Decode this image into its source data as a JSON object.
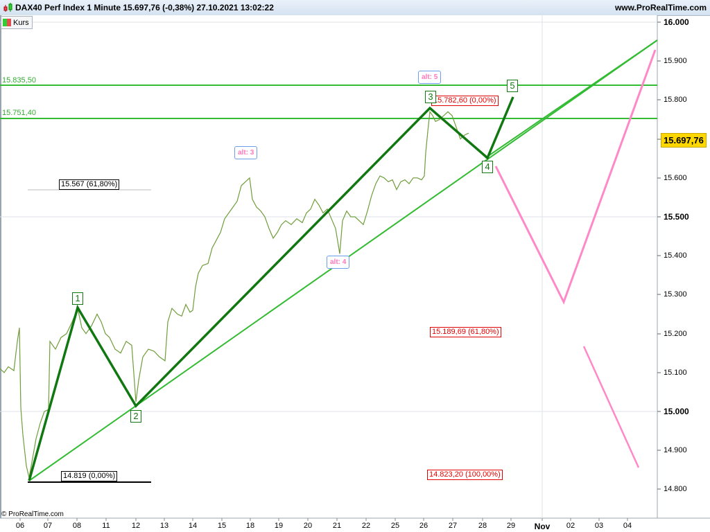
{
  "header": {
    "title": "DAX40 Perf Index 1 Minute 15.697,76 (-0,38%) 27.10.2021 13:02:22",
    "site": "www.ProRealTime.com"
  },
  "legend": {
    "label": "Kurs"
  },
  "footer": {
    "copyright": "© ProRealTime.com"
  },
  "colors": {
    "wave_line": "#117711",
    "trend_line": "#33bb33",
    "alt_path": "#ff88c8",
    "fib_red": "#e00000",
    "last_price_bg": "#ffd700",
    "candle_up": "#33cc33",
    "candle_down": "#e05050"
  },
  "chart_data": {
    "type": "line",
    "title": "DAX40 Perf Index 1 Minute",
    "last_price": "15.697,76",
    "change": "-0,38%",
    "timestamp": "27.10.2021 13:02:22",
    "xlabel": "",
    "ylabel": "",
    "ylim": [
      14750,
      16030
    ],
    "grid": true,
    "y_ticks": [
      "16.000",
      "15.900",
      "15.800",
      "15.700",
      "15.600",
      "15.500",
      "15.400",
      "15.300",
      "15.200",
      "15.100",
      "15.000",
      "14.900",
      "14.800"
    ],
    "x_ticks": [
      "06",
      "07",
      "08",
      "11",
      "12",
      "13",
      "14",
      "15",
      "18",
      "19",
      "20",
      "21",
      "22",
      "25",
      "26",
      "27",
      "28",
      "29",
      "Nov",
      "02",
      "03",
      "04"
    ],
    "price_path_approx": [
      [
        0,
        15110
      ],
      [
        6,
        15100
      ],
      [
        12,
        15115
      ],
      [
        20,
        15105
      ],
      [
        25,
        15180
      ],
      [
        28,
        15215
      ],
      [
        30,
        15010
      ],
      [
        33,
        14940
      ],
      [
        38,
        14860
      ],
      [
        42,
        14830
      ],
      [
        46,
        14870
      ],
      [
        52,
        14930
      ],
      [
        58,
        14970
      ],
      [
        64,
        15000
      ],
      [
        70,
        15005
      ],
      [
        72,
        15180
      ],
      [
        80,
        15160
      ],
      [
        88,
        15190
      ],
      [
        96,
        15200
      ],
      [
        104,
        15230
      ],
      [
        112,
        15265
      ],
      [
        118,
        15215
      ],
      [
        124,
        15200
      ],
      [
        132,
        15220
      ],
      [
        140,
        15250
      ],
      [
        146,
        15230
      ],
      [
        152,
        15200
      ],
      [
        158,
        15190
      ],
      [
        166,
        15160
      ],
      [
        174,
        15150
      ],
      [
        182,
        15180
      ],
      [
        190,
        15170
      ],
      [
        196,
        15025
      ],
      [
        200,
        15080
      ],
      [
        206,
        15140
      ],
      [
        214,
        15160
      ],
      [
        222,
        15155
      ],
      [
        230,
        15140
      ],
      [
        238,
        15130
      ],
      [
        242,
        15230
      ],
      [
        248,
        15265
      ],
      [
        256,
        15250
      ],
      [
        262,
        15245
      ],
      [
        268,
        15275
      ],
      [
        274,
        15255
      ],
      [
        278,
        15260
      ],
      [
        282,
        15320
      ],
      [
        286,
        15355
      ],
      [
        292,
        15375
      ],
      [
        300,
        15380
      ],
      [
        306,
        15420
      ],
      [
        312,
        15440
      ],
      [
        318,
        15460
      ],
      [
        324,
        15495
      ],
      [
        330,
        15510
      ],
      [
        336,
        15525
      ],
      [
        342,
        15540
      ],
      [
        348,
        15580
      ],
      [
        354,
        15590
      ],
      [
        360,
        15600
      ],
      [
        364,
        15545
      ],
      [
        370,
        15525
      ],
      [
        376,
        15515
      ],
      [
        382,
        15500
      ],
      [
        388,
        15470
      ],
      [
        394,
        15445
      ],
      [
        400,
        15460
      ],
      [
        406,
        15480
      ],
      [
        412,
        15490
      ],
      [
        420,
        15480
      ],
      [
        428,
        15495
      ],
      [
        436,
        15485
      ],
      [
        442,
        15510
      ],
      [
        448,
        15520
      ],
      [
        454,
        15545
      ],
      [
        460,
        15530
      ],
      [
        466,
        15510
      ],
      [
        472,
        15520
      ],
      [
        478,
        15495
      ],
      [
        484,
        15470
      ],
      [
        490,
        15405
      ],
      [
        494,
        15490
      ],
      [
        500,
        15515
      ],
      [
        506,
        15500
      ],
      [
        512,
        15500
      ],
      [
        518,
        15490
      ],
      [
        524,
        15480
      ],
      [
        530,
        15515
      ],
      [
        536,
        15555
      ],
      [
        542,
        15585
      ],
      [
        548,
        15605
      ],
      [
        554,
        15600
      ],
      [
        560,
        15590
      ],
      [
        566,
        15595
      ],
      [
        572,
        15570
      ],
      [
        578,
        15590
      ],
      [
        584,
        15595
      ],
      [
        590,
        15585
      ],
      [
        596,
        15600
      ],
      [
        602,
        15600
      ],
      [
        608,
        15595
      ],
      [
        612,
        15605
      ],
      [
        614,
        15665
      ],
      [
        617,
        15720
      ],
      [
        620,
        15770
      ],
      [
        624,
        15760
      ],
      [
        628,
        15745
      ],
      [
        634,
        15750
      ],
      [
        640,
        15760
      ],
      [
        646,
        15770
      ],
      [
        652,
        15760
      ],
      [
        658,
        15730
      ],
      [
        664,
        15700
      ],
      [
        670,
        15710
      ],
      [
        676,
        15715
      ]
    ],
    "horizontal_levels": [
      {
        "label": "15.835,50",
        "value": 15835.5
      },
      {
        "label": "15.751,40",
        "value": 15751.4
      }
    ],
    "fibonacci_labels": [
      {
        "text": "15.567 (61,80%)",
        "value": 15567,
        "color": "black"
      },
      {
        "text": "14.819 (0,00%)",
        "value": 14819,
        "color": "black"
      },
      {
        "text": "15.782,60 (0,00%)",
        "value": 15782.6,
        "color": "red"
      },
      {
        "text": "15.189,69 (61,80%)",
        "value": 15189.69,
        "color": "red"
      },
      {
        "text": "14.823,20 (100,00%)",
        "value": 14823.2,
        "color": "red"
      }
    ],
    "elliott_waves": [
      {
        "label": "1",
        "date": "08",
        "value": 15265
      },
      {
        "label": "2",
        "date": "12",
        "value": 15015
      },
      {
        "label": "3",
        "date": "26",
        "value": 15782
      },
      {
        "label": "4",
        "date": "28",
        "value": 15650
      },
      {
        "label": "5",
        "date": "29",
        "value": 15810
      }
    ],
    "alt_labels": [
      {
        "text": "alt: 3"
      },
      {
        "text": "alt: 4"
      },
      {
        "text": "alt: 5"
      }
    ],
    "alt_projection": [
      {
        "date": "28",
        "value": 15630
      },
      {
        "date": "Nov",
        "value": 15280
      },
      {
        "date": "04+",
        "value": 15930
      }
    ],
    "alt_projection_2": [
      {
        "date": "02",
        "value": 15165
      },
      {
        "date": "04",
        "value": 14855
      }
    ]
  }
}
